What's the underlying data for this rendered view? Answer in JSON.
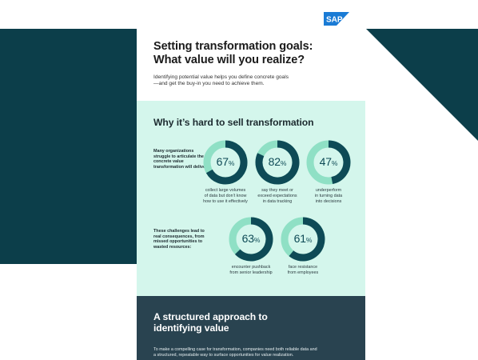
{
  "brand": {
    "logo_text": "SAP",
    "logo_color": "#1a7bd5"
  },
  "colors": {
    "teal_bg": "#0c3e4a",
    "mint": "#d4f6ec",
    "donut_fill": "#0e4a56",
    "donut_track": "#8fe0c5",
    "dark_panel": "#294350"
  },
  "header": {
    "title_line1": "Setting transformation goals:",
    "title_line2": "What value will you realize?",
    "subtitle_line1": "Identifying potential value helps you define concrete goals",
    "subtitle_line2": "—and get the buy-in you need to achieve them."
  },
  "why": {
    "title": "Why it’s hard to sell transformation",
    "intro1": "Many organizations struggle to articulate the concrete value transformation will deliver.",
    "intro2": "These challenges lead to real consequences, from missed opportunities to wasted resources:",
    "stats": [
      {
        "value": 67,
        "caption1": "collect large volumes",
        "caption2": "of data but don’t know",
        "caption3": "how to use it effectively"
      },
      {
        "value": 82,
        "caption1": "say they meet or",
        "caption2": "exceed expectations",
        "caption3": "in data tracking"
      },
      {
        "value": 47,
        "caption1": "underperform",
        "caption2": "in turning data",
        "caption3": "into decisions"
      },
      {
        "value": 63,
        "caption1": "encounter pushback",
        "caption2": "from senior leadership",
        "caption3": ""
      },
      {
        "value": 61,
        "caption1": "face resistance",
        "caption2": "from employees",
        "caption3": ""
      }
    ]
  },
  "approach": {
    "title_line1": "A structured approach to",
    "title_line2": "identifying value",
    "body_line1": "To make a compelling case for transformation, companies need both reliable data and",
    "body_line2": "a structured, repeatable way to surface opportunities for value realization."
  }
}
